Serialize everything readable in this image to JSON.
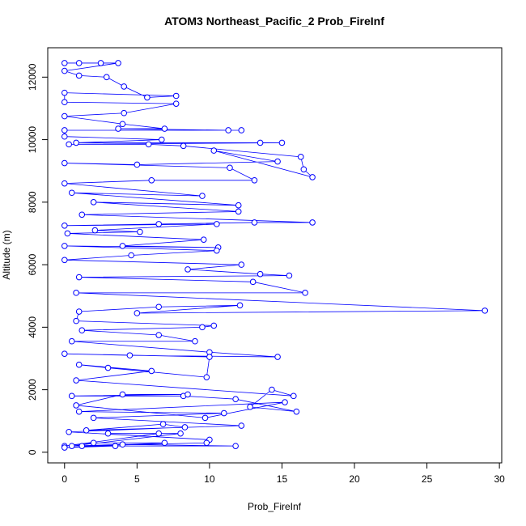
{
  "chart_data": {
    "type": "scatter",
    "title": "ATOM3 Northeast_Pacific_2 Prob_FireInf",
    "x_label": "Prob_FireInf",
    "y_label": "Altitude (m)",
    "color": "#0000ff",
    "connected": true,
    "xlim": [
      -1.16,
      30.16
    ],
    "ylim": [
      -340,
      12940
    ],
    "xticks": [
      0,
      5,
      10,
      15,
      20,
      25,
      30
    ],
    "yticks": [
      0,
      2000,
      4000,
      6000,
      8000,
      10000,
      12000
    ],
    "x": [
      0,
      1,
      2.5,
      3.7,
      0,
      1,
      2.9,
      4.1,
      5.7,
      7.7,
      0,
      0,
      7.7,
      4.1,
      0,
      4,
      6.9,
      3.7,
      11.3,
      12.2,
      0,
      0,
      6.7,
      0.8,
      13.5,
      15,
      0.3,
      5.8,
      8.2,
      16.3,
      16.5,
      17.1,
      10.3,
      14.7,
      5,
      0,
      11.4,
      13.1,
      6,
      0,
      9.5,
      0.5,
      12,
      2,
      12,
      1.2,
      17.1,
      13.1,
      6.5,
      0,
      10.5,
      2.1,
      5.2,
      0.2,
      9.6,
      4,
      10.6,
      0,
      10.5,
      4.6,
      0,
      12.2,
      8.5,
      13.5,
      15.5,
      1,
      13,
      16.6,
      0.8,
      29,
      5,
      12.1,
      6.5,
      1,
      0.8,
      10.3,
      9.5,
      1.2,
      6.5,
      9,
      0.5,
      10,
      14.7,
      4.5,
      0,
      10,
      9.8,
      3,
      1,
      6,
      0.8,
      15.8,
      14.3,
      12.8,
      16,
      11.8,
      8.2,
      0.5,
      8.5,
      4,
      0.8,
      9.7,
      15.2,
      1,
      11,
      2,
      12.2,
      1.5,
      6.8,
      8.3,
      0.3,
      10,
      9.8,
      1.2,
      11.8,
      4,
      0.5,
      8,
      3,
      6.5,
      0,
      2,
      6.9,
      0,
      3.5
    ],
    "values": [
      12450,
      12450,
      12450,
      12450,
      12200,
      12050,
      12000,
      11700,
      11350,
      11400,
      11500,
      11200,
      11150,
      10850,
      10750,
      10500,
      10350,
      10350,
      10300,
      10300,
      10300,
      10100,
      10000,
      9900,
      9900,
      9900,
      9850,
      9850,
      9800,
      9450,
      9050,
      8800,
      9650,
      9300,
      9200,
      9250,
      9100,
      8700,
      8700,
      8600,
      8200,
      8300,
      7900,
      8000,
      7700,
      7600,
      7350,
      7350,
      7300,
      7250,
      7300,
      7100,
      7050,
      7000,
      6800,
      6600,
      6550,
      6600,
      6450,
      6300,
      6150,
      6000,
      5850,
      5700,
      5650,
      5600,
      5450,
      5100,
      5100,
      4530,
      4450,
      4700,
      4650,
      4500,
      4200,
      4050,
      4000,
      3900,
      3750,
      3550,
      3550,
      3200,
      3050,
      3100,
      3150,
      3050,
      2400,
      2700,
      2800,
      2600,
      2300,
      1800,
      2000,
      1450,
      1300,
      1700,
      1800,
      1800,
      1850,
      1850,
      1500,
      1100,
      1600,
      1300,
      1250,
      1100,
      850,
      700,
      900,
      800,
      650,
      400,
      300,
      200,
      200,
      250,
      200,
      600,
      600,
      600,
      200,
      300,
      300,
      150,
      200
    ]
  }
}
